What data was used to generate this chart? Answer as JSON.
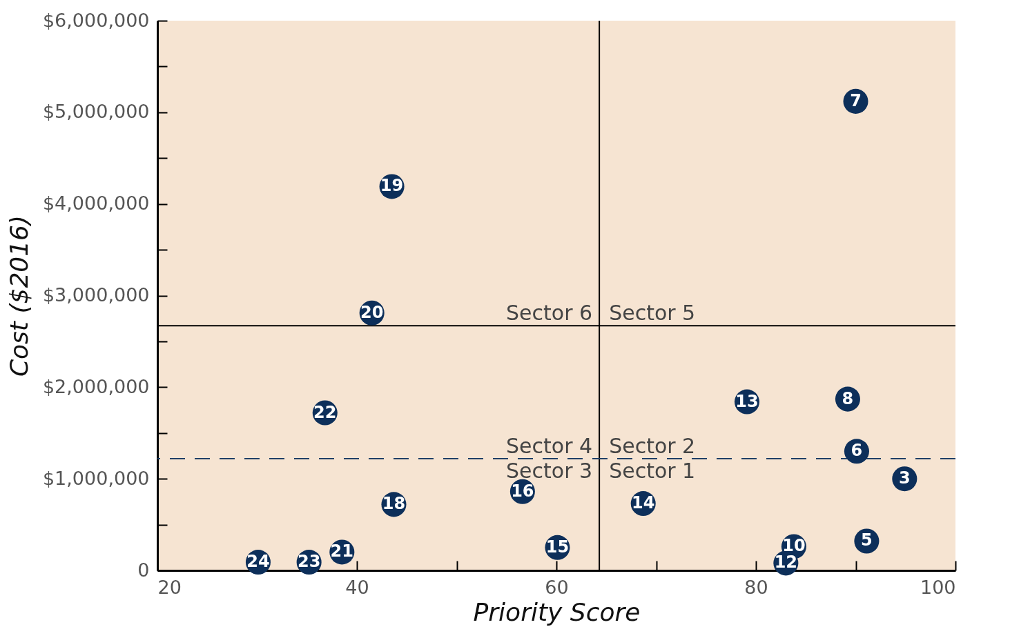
{
  "chart_data": {
    "type": "scatter",
    "xlabel": "Priority Score",
    "ylabel": "Cost ($2016)",
    "x": [
      90.0,
      43.5,
      41.5,
      36.8,
      79.1,
      89.2,
      90.1,
      94.9,
      56.6,
      43.7,
      68.7,
      60.1,
      83.8,
      91.1,
      83.0,
      38.5,
      35.2,
      30.1
    ],
    "series": [
      {
        "color": "#0d2f5a",
        "values": [
          5120000,
          4190000,
          2810000,
          1720000,
          1840000,
          1870000,
          1300000,
          1000000,
          860000,
          720000,
          730000,
          250000,
          260000,
          320000,
          80000,
          200000,
          90000,
          90000
        ]
      }
    ],
    "marker": "circle",
    "xlim": [
      20,
      100
    ],
    "ylim": [
      0,
      6000000
    ],
    "xticks": [
      20,
      {
        "value": 30,
        "label": null
      },
      40,
      {
        "value": 50,
        "label": null
      },
      60,
      {
        "value": 70,
        "label": null
      },
      80,
      {
        "value": 90,
        "label": null
      },
      100
    ],
    "yticks": [
      {
        "value": 0,
        "label": "0"
      },
      {
        "value": 500000,
        "label": null
      },
      {
        "value": 1000000,
        "label": "$1,000,000"
      },
      {
        "value": 1500000,
        "label": null
      },
      {
        "value": 2000000,
        "label": "$2,000,000"
      },
      {
        "value": 2500000,
        "label": null
      },
      {
        "value": 3000000,
        "label": "$3,000,000"
      },
      {
        "value": 3500000,
        "label": null
      },
      {
        "value": 4000000,
        "label": "$4,000,000"
      },
      {
        "value": 4500000,
        "label": null
      },
      {
        "value": 5000000,
        "label": "$5,000,000"
      },
      {
        "value": 5500000,
        "label": null
      },
      {
        "value": 6000000,
        "label": "$6,000,000"
      }
    ],
    "ref_lines": [
      {
        "axis": "x",
        "value": 64.3,
        "color": "#000000"
      },
      {
        "axis": "y",
        "value": 2670000,
        "color": "#000000"
      },
      {
        "axis": "y",
        "value": 1220000,
        "color": "#1f3f66",
        "line_style": "dashed"
      }
    ],
    "annotations": [
      {
        "text": "7",
        "x": 90.0,
        "y": 5120000
      },
      {
        "text": "19",
        "x": 43.5,
        "y": 4190000
      },
      {
        "text": "20",
        "x": 41.5,
        "y": 2810000
      },
      {
        "text": "22",
        "x": 36.8,
        "y": 1720000
      },
      {
        "text": "13",
        "x": 79.1,
        "y": 1840000
      },
      {
        "text": "8",
        "x": 89.2,
        "y": 1870000
      },
      {
        "text": "6",
        "x": 90.1,
        "y": 1300000
      },
      {
        "text": "3",
        "x": 94.9,
        "y": 1000000
      },
      {
        "text": "16",
        "x": 56.6,
        "y": 860000
      },
      {
        "text": "18",
        "x": 43.7,
        "y": 720000
      },
      {
        "text": "14",
        "x": 68.7,
        "y": 730000
      },
      {
        "text": "15",
        "x": 60.1,
        "y": 250000
      },
      {
        "text": "10",
        "x": 83.8,
        "y": 260000
      },
      {
        "text": "5",
        "x": 91.1,
        "y": 320000
      },
      {
        "text": "12",
        "x": 83.0,
        "y": 80000
      },
      {
        "text": "21",
        "x": 38.5,
        "y": 200000
      },
      {
        "text": "23",
        "x": 35.2,
        "y": 90000
      },
      {
        "text": "24",
        "x": 30.1,
        "y": 90000
      },
      "Sector 6",
      "Sector 5",
      "Sector 4",
      "Sector 2",
      "Sector 3",
      "Sector 1"
    ]
  }
}
